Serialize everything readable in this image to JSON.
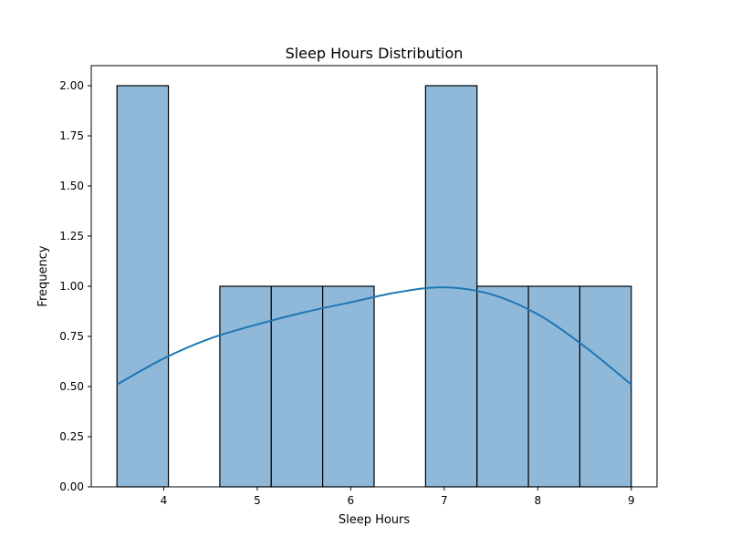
{
  "chart_data": {
    "type": "bar",
    "title": "Sleep Hours Distribution",
    "xlabel": "Sleep Hours",
    "ylabel": "Frequency",
    "xlim": [
      3.225,
      9.275
    ],
    "ylim": [
      0,
      2.1
    ],
    "x_ticks": [
      4,
      5,
      6,
      7,
      8,
      9
    ],
    "y_ticks": [
      0.0,
      0.25,
      0.5,
      0.75,
      1.0,
      1.25,
      1.5,
      1.75,
      2.0
    ],
    "y_tick_labels": [
      "0.00",
      "0.25",
      "0.50",
      "0.75",
      "1.00",
      "1.25",
      "1.50",
      "1.75",
      "2.00"
    ],
    "x_tick_labels": [
      "4",
      "5",
      "6",
      "7",
      "8",
      "9"
    ],
    "bins": [
      {
        "x0": 3.5,
        "x1": 4.05,
        "count": 2
      },
      {
        "x0": 4.05,
        "x1": 4.6,
        "count": 0
      },
      {
        "x0": 4.6,
        "x1": 5.15,
        "count": 1
      },
      {
        "x0": 5.15,
        "x1": 5.7,
        "count": 1
      },
      {
        "x0": 5.7,
        "x1": 6.25,
        "count": 1
      },
      {
        "x0": 6.25,
        "x1": 6.8,
        "count": 0
      },
      {
        "x0": 6.8,
        "x1": 7.35,
        "count": 2
      },
      {
        "x0": 7.35,
        "x1": 7.9,
        "count": 1
      },
      {
        "x0": 7.9,
        "x1": 8.45,
        "count": 1
      },
      {
        "x0": 8.45,
        "x1": 9.0,
        "count": 1
      }
    ],
    "kde": {
      "x": [
        3.5,
        4.0,
        4.5,
        5.0,
        5.5,
        6.0,
        6.5,
        7.0,
        7.5,
        8.0,
        8.5,
        9.0
      ],
      "y": [
        0.51,
        0.64,
        0.74,
        0.81,
        0.87,
        0.92,
        0.97,
        0.995,
        0.96,
        0.86,
        0.7,
        0.51
      ]
    },
    "grid": false,
    "colors": {
      "bar_fill": "#8fb8d9",
      "bar_edge": "#000000",
      "kde_line": "#1f77b4"
    }
  }
}
